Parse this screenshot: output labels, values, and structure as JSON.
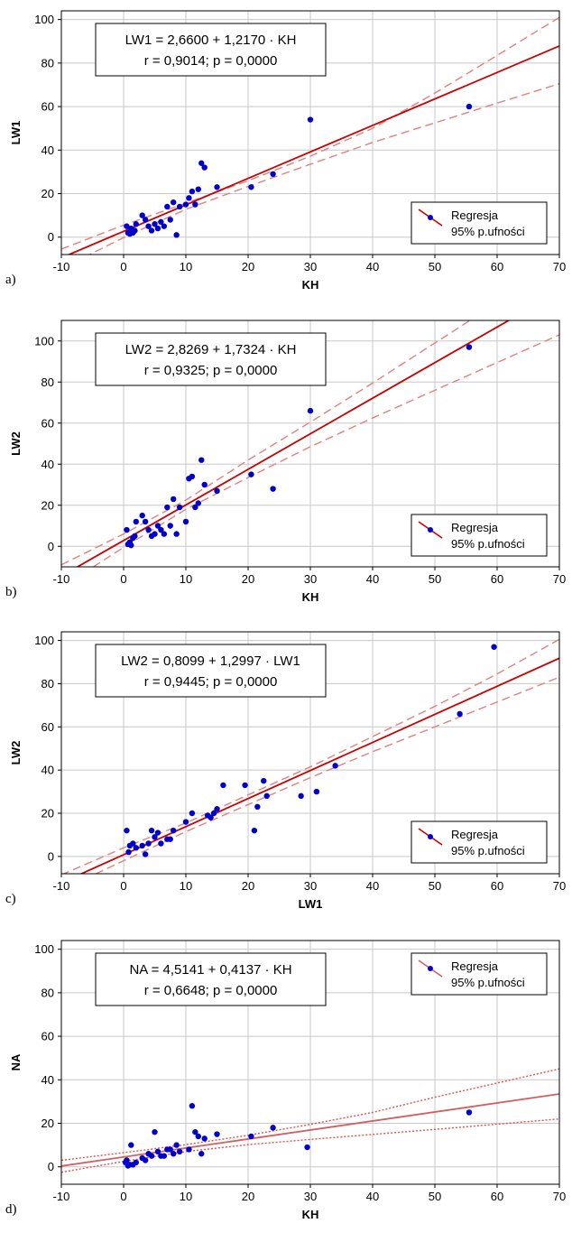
{
  "chart_data": [
    {
      "panel_label": "a)",
      "type": "scatter",
      "xlabel": "KH",
      "ylabel": "LW1",
      "xlim": [
        -10,
        70
      ],
      "ylim": [
        -8,
        104
      ],
      "xticks": [
        -10,
        0,
        10,
        20,
        30,
        40,
        50,
        60,
        70
      ],
      "yticks": [
        0,
        20,
        40,
        60,
        80,
        100
      ],
      "grid": true,
      "equation": "LW1 = 2,6600 + 1,2170 · KH",
      "stats": "r = 0,9014;  p = 0,0000",
      "annotation_placement": "top-left",
      "legend": {
        "placement": "bottom-right",
        "entries": [
          "Regresja",
          "95% p.ufności"
        ]
      },
      "regression": {
        "intercept": 2.66,
        "slope": 1.217
      },
      "ci_band": {
        "x": [
          -10,
          0,
          10,
          20,
          30,
          40,
          50,
          60,
          70
        ],
        "lower": [
          -14.5,
          -0.2,
          12.8,
          23.3,
          33.5,
          43.5,
          52.5,
          61.6,
          70.5
        ],
        "upper": [
          -5.5,
          5.5,
          15.6,
          25.9,
          37.2,
          50.0,
          66.2,
          83.5,
          101.0
        ]
      },
      "ci_style": "dashed",
      "line_color": "#cc0000",
      "ci_color": "#e08080",
      "point_color": "#0000cc",
      "points": [
        [
          0.5,
          5
        ],
        [
          0.7,
          2
        ],
        [
          1,
          1.5
        ],
        [
          1.2,
          4
        ],
        [
          1.5,
          2
        ],
        [
          1.8,
          3
        ],
        [
          2,
          6
        ],
        [
          3,
          10
        ],
        [
          3.5,
          8
        ],
        [
          4,
          5
        ],
        [
          4.5,
          3
        ],
        [
          5,
          6
        ],
        [
          5.5,
          4
        ],
        [
          6,
          7
        ],
        [
          6.5,
          5
        ],
        [
          7,
          14
        ],
        [
          7.5,
          8
        ],
        [
          8,
          16
        ],
        [
          8.5,
          1
        ],
        [
          9,
          14
        ],
        [
          10,
          15
        ],
        [
          10.5,
          18
        ],
        [
          11,
          21
        ],
        [
          11.5,
          15
        ],
        [
          12,
          22
        ],
        [
          12.5,
          34
        ],
        [
          13,
          32
        ],
        [
          15,
          23
        ],
        [
          20.5,
          23
        ],
        [
          24,
          29
        ],
        [
          30,
          54
        ],
        [
          55.5,
          60
        ]
      ]
    },
    {
      "panel_label": "b)",
      "type": "scatter",
      "xlabel": "KH",
      "ylabel": "LW2",
      "xlim": [
        -10,
        70
      ],
      "ylim": [
        -10,
        110
      ],
      "xticks": [
        -10,
        0,
        10,
        20,
        30,
        40,
        50,
        60,
        70
      ],
      "yticks": [
        0,
        20,
        40,
        60,
        80,
        100
      ],
      "grid": true,
      "equation": "LW2 = 2,8269 + 1,7324 · KH",
      "stats": "r = 0,9325; p = 0,0000",
      "annotation_placement": "top-left",
      "legend": {
        "placement": "bottom-right",
        "entries": [
          "Regresja",
          "95% p.ufności"
        ]
      },
      "regression": {
        "intercept": 2.8269,
        "slope": 1.7324
      },
      "ci_band": {
        "x": [
          -10,
          0,
          10,
          20,
          30,
          40,
          50,
          60,
          70
        ],
        "lower": [
          -20,
          -0.5,
          18.0,
          33.5,
          48.5,
          62.5,
          76.0,
          89.5,
          103.0
        ],
        "upper": [
          -9,
          6.0,
          22.5,
          42.0,
          60.5,
          79.5,
          99.0,
          118.5,
          138.0
        ]
      },
      "ci_style": "dashed",
      "line_color": "#cc0000",
      "ci_color": "#e08080",
      "point_color": "#0000cc",
      "points": [
        [
          0.5,
          8
        ],
        [
          0.7,
          1
        ],
        [
          1,
          2
        ],
        [
          1.2,
          0.5
        ],
        [
          1.5,
          4
        ],
        [
          1.8,
          5
        ],
        [
          2,
          12
        ],
        [
          3,
          15
        ],
        [
          3.5,
          12
        ],
        [
          4,
          8
        ],
        [
          4.5,
          5
        ],
        [
          5,
          6
        ],
        [
          5.5,
          10
        ],
        [
          6,
          8
        ],
        [
          6.5,
          6
        ],
        [
          7,
          19
        ],
        [
          7.5,
          10
        ],
        [
          8,
          23
        ],
        [
          8.5,
          6
        ],
        [
          9,
          19
        ],
        [
          10,
          12
        ],
        [
          10.5,
          33
        ],
        [
          11,
          34
        ],
        [
          11.5,
          19
        ],
        [
          12,
          21
        ],
        [
          12.5,
          42
        ],
        [
          13,
          30
        ],
        [
          15,
          27
        ],
        [
          20.5,
          35
        ],
        [
          24,
          28
        ],
        [
          30,
          66
        ],
        [
          55.5,
          97
        ]
      ]
    },
    {
      "panel_label": "c)",
      "type": "scatter",
      "xlabel": "LW1",
      "ylabel": "LW2",
      "xlim": [
        -10,
        70
      ],
      "ylim": [
        -8,
        104
      ],
      "xticks": [
        -10,
        0,
        10,
        20,
        30,
        40,
        50,
        60,
        70
      ],
      "yticks": [
        0,
        20,
        40,
        60,
        80,
        100
      ],
      "grid": true,
      "equation": "LW2 = 0,8099 + 1,2997 · LW1",
      "stats": "r = 0,9445;  p = 0,0000",
      "annotation_placement": "top-left",
      "legend": {
        "placement": "bottom-right",
        "entries": [
          "Regresja",
          "95% p.ufności"
        ]
      },
      "regression": {
        "intercept": 0.8099,
        "slope": 1.2997
      },
      "ci_band": {
        "x": [
          -10,
          0,
          10,
          20,
          30,
          40,
          50,
          60,
          70
        ],
        "lower": [
          -15.5,
          -2.0,
          11.5,
          24.0,
          36.5,
          48.5,
          60.0,
          71.5,
          83.0
        ],
        "upper": [
          -8.5,
          4.0,
          15.5,
          28.5,
          41.5,
          55.5,
          69.5,
          84.5,
          100.5
        ]
      },
      "ci_style": "dashed",
      "line_color": "#cc0000",
      "ci_color": "#e08080",
      "point_color": "#0000cc",
      "points": [
        [
          0.5,
          12
        ],
        [
          0.8,
          2
        ],
        [
          1,
          5
        ],
        [
          1.5,
          6
        ],
        [
          2,
          4
        ],
        [
          3,
          5
        ],
        [
          3.5,
          1
        ],
        [
          4,
          6
        ],
        [
          4.5,
          12
        ],
        [
          5,
          9
        ],
        [
          5.5,
          11
        ],
        [
          6,
          6
        ],
        [
          7,
          8
        ],
        [
          7.5,
          8
        ],
        [
          8,
          12
        ],
        [
          10,
          16
        ],
        [
          11,
          20
        ],
        [
          13.5,
          19
        ],
        [
          14,
          18
        ],
        [
          14.5,
          20
        ],
        [
          15,
          22
        ],
        [
          16,
          33
        ],
        [
          19.5,
          33
        ],
        [
          21,
          12
        ],
        [
          21.5,
          23
        ],
        [
          22.5,
          35
        ],
        [
          23,
          28
        ],
        [
          28.5,
          28
        ],
        [
          31,
          30
        ],
        [
          34,
          42
        ],
        [
          54,
          66
        ],
        [
          59.5,
          97
        ]
      ]
    },
    {
      "panel_label": "d)",
      "type": "scatter",
      "xlabel": "KH",
      "ylabel": "NA",
      "xlim": [
        -10,
        70
      ],
      "ylim": [
        -8,
        104
      ],
      "xticks": [
        -10,
        0,
        10,
        20,
        30,
        40,
        50,
        60,
        70
      ],
      "yticks": [
        0,
        20,
        40,
        60,
        80,
        100
      ],
      "grid": true,
      "equation": "NA = 4,5141 + 0,4137 · KH",
      "stats": "r = 0,6648; p = 0,0000",
      "annotation_placement": "top-left",
      "legend": {
        "placement": "top-right",
        "entries": [
          "Regresja",
          "95% p.ufności"
        ]
      },
      "regression": {
        "intercept": 4.5141,
        "slope": 0.4137
      },
      "ci_band": {
        "x": [
          -10,
          0,
          10,
          20,
          30,
          40,
          50,
          60,
          70
        ],
        "lower": [
          -2.5,
          2.5,
          7.0,
          10.2,
          12.6,
          14.9,
          17.2,
          19.6,
          22.0
        ],
        "upper": [
          3.0,
          6.5,
          10.2,
          14.5,
          19.5,
          25.0,
          32.0,
          38.5,
          45.0
        ]
      },
      "ci_style": "dotted",
      "line_color": "#d06060",
      "ci_color": "#e05050",
      "point_color": "#0000cc",
      "points": [
        [
          0.3,
          2
        ],
        [
          0.5,
          3
        ],
        [
          0.7,
          0.5
        ],
        [
          1,
          1
        ],
        [
          1.2,
          10
        ],
        [
          1.5,
          1
        ],
        [
          2,
          2
        ],
        [
          3,
          4
        ],
        [
          3.5,
          3
        ],
        [
          4,
          6
        ],
        [
          4.5,
          5
        ],
        [
          5,
          16
        ],
        [
          5.5,
          7
        ],
        [
          6,
          5
        ],
        [
          6.5,
          5
        ],
        [
          7,
          8
        ],
        [
          7.5,
          8
        ],
        [
          8,
          6
        ],
        [
          8.5,
          10
        ],
        [
          9,
          7
        ],
        [
          10.5,
          8
        ],
        [
          11,
          28
        ],
        [
          11.5,
          16
        ],
        [
          12,
          14
        ],
        [
          12.5,
          6
        ],
        [
          13,
          13
        ],
        [
          15,
          15
        ],
        [
          20.5,
          14
        ],
        [
          24,
          18
        ],
        [
          29.5,
          9
        ],
        [
          55.5,
          25
        ]
      ]
    }
  ]
}
